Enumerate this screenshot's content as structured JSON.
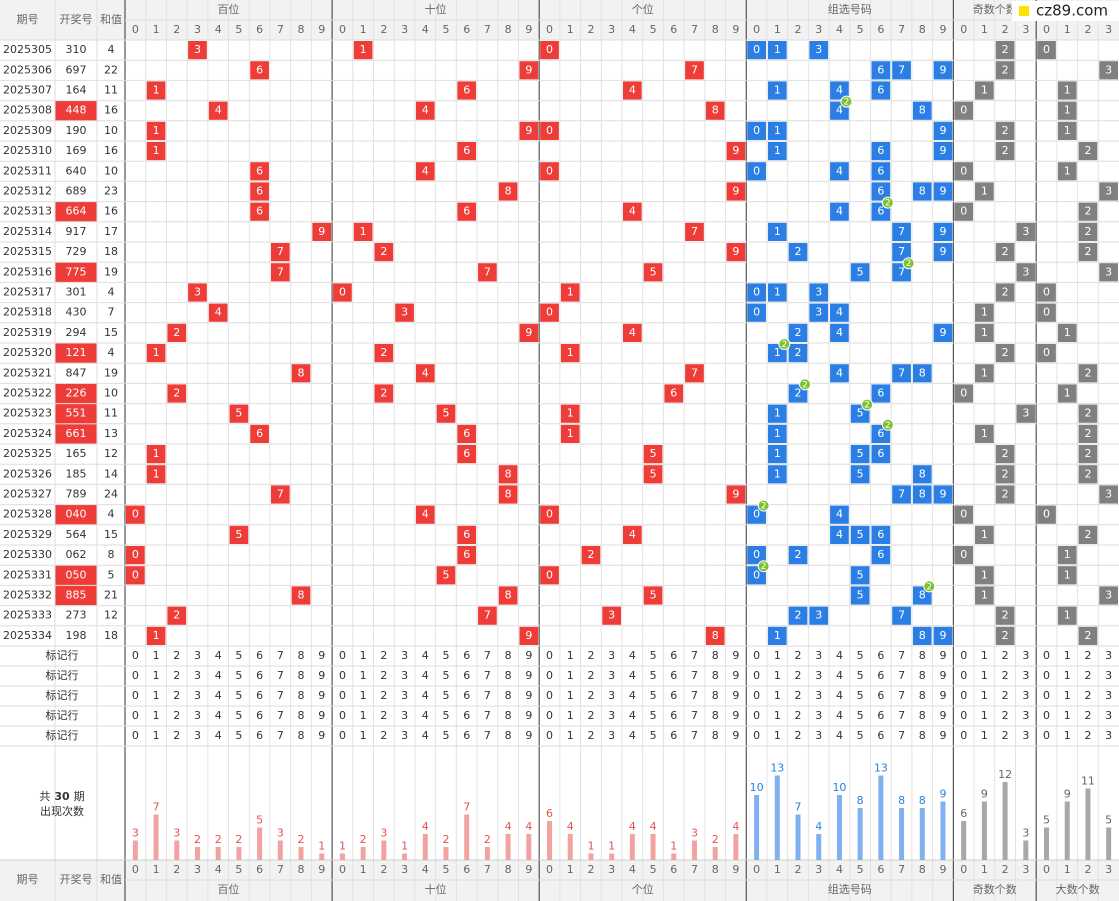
{
  "header": {
    "issue": "期号",
    "number": "开奖号",
    "sum": "和值",
    "groups": [
      "百位",
      "十位",
      "个位",
      "组选号码",
      "奇数个数",
      "大数个数"
    ]
  },
  "watermark": "cz89.com",
  "digit_labels": [
    0,
    1,
    2,
    3,
    4,
    5,
    6,
    7,
    8,
    9
  ],
  "count_labels": [
    0,
    1,
    2,
    3
  ],
  "rows": [
    {
      "issue": "2025305",
      "number": "310",
      "sum": 4,
      "digits": [
        3,
        1,
        0
      ],
      "group": [
        0,
        1,
        3
      ],
      "pair": null,
      "odd": 2,
      "big": 0
    },
    {
      "issue": "2025306",
      "number": "697",
      "sum": 22,
      "digits": [
        6,
        9,
        7
      ],
      "group": [
        6,
        7,
        9
      ],
      "pair": null,
      "odd": 2,
      "big": 3
    },
    {
      "issue": "2025307",
      "number": "164",
      "sum": 11,
      "digits": [
        1,
        6,
        4
      ],
      "group": [
        1,
        4,
        6
      ],
      "pair": null,
      "odd": 1,
      "big": 1
    },
    {
      "issue": "2025308",
      "number": "448",
      "sum": 16,
      "digits": [
        4,
        4,
        8
      ],
      "group": [
        4,
        8
      ],
      "pair": {
        "digit": 4,
        "count": 2
      },
      "odd": 0,
      "big": 1
    },
    {
      "issue": "2025309",
      "number": "190",
      "sum": 10,
      "digits": [
        1,
        9,
        0
      ],
      "group": [
        0,
        1,
        9
      ],
      "pair": null,
      "odd": 2,
      "big": 1
    },
    {
      "issue": "2025310",
      "number": "169",
      "sum": 16,
      "digits": [
        1,
        6,
        9
      ],
      "group": [
        1,
        6,
        9
      ],
      "pair": null,
      "odd": 2,
      "big": 2
    },
    {
      "issue": "2025311",
      "number": "640",
      "sum": 10,
      "digits": [
        6,
        4,
        0
      ],
      "group": [
        0,
        4,
        6
      ],
      "pair": null,
      "odd": 0,
      "big": 1
    },
    {
      "issue": "2025312",
      "number": "689",
      "sum": 23,
      "digits": [
        6,
        8,
        9
      ],
      "group": [
        6,
        8,
        9
      ],
      "pair": null,
      "odd": 1,
      "big": 3
    },
    {
      "issue": "2025313",
      "number": "664",
      "sum": 16,
      "digits": [
        6,
        6,
        4
      ],
      "group": [
        4,
        6
      ],
      "pair": {
        "digit": 6,
        "count": 2
      },
      "odd": 0,
      "big": 2
    },
    {
      "issue": "2025314",
      "number": "917",
      "sum": 17,
      "digits": [
        9,
        1,
        7
      ],
      "group": [
        1,
        7,
        9
      ],
      "pair": null,
      "odd": 3,
      "big": 2
    },
    {
      "issue": "2025315",
      "number": "729",
      "sum": 18,
      "digits": [
        7,
        2,
        9
      ],
      "group": [
        2,
        7,
        9
      ],
      "pair": null,
      "odd": 2,
      "big": 2
    },
    {
      "issue": "2025316",
      "number": "775",
      "sum": 19,
      "digits": [
        7,
        7,
        5
      ],
      "group": [
        5,
        7
      ],
      "pair": {
        "digit": 7,
        "count": 2
      },
      "odd": 3,
      "big": 3
    },
    {
      "issue": "2025317",
      "number": "301",
      "sum": 4,
      "digits": [
        3,
        0,
        1
      ],
      "group": [
        0,
        1,
        3
      ],
      "pair": null,
      "odd": 2,
      "big": 0
    },
    {
      "issue": "2025318",
      "number": "430",
      "sum": 7,
      "digits": [
        4,
        3,
        0
      ],
      "group": [
        0,
        3,
        4
      ],
      "pair": null,
      "odd": 1,
      "big": 0
    },
    {
      "issue": "2025319",
      "number": "294",
      "sum": 15,
      "digits": [
        2,
        9,
        4
      ],
      "group": [
        2,
        4,
        9
      ],
      "pair": null,
      "odd": 1,
      "big": 1
    },
    {
      "issue": "2025320",
      "number": "121",
      "sum": 4,
      "digits": [
        1,
        2,
        1
      ],
      "group": [
        1,
        2
      ],
      "pair": {
        "digit": 1,
        "count": 2
      },
      "odd": 2,
      "big": 0
    },
    {
      "issue": "2025321",
      "number": "847",
      "sum": 19,
      "digits": [
        8,
        4,
        7
      ],
      "group": [
        4,
        7,
        8
      ],
      "pair": null,
      "odd": 1,
      "big": 2
    },
    {
      "issue": "2025322",
      "number": "226",
      "sum": 10,
      "digits": [
        2,
        2,
        6
      ],
      "group": [
        2,
        6
      ],
      "pair": {
        "digit": 2,
        "count": 2
      },
      "odd": 0,
      "big": 1
    },
    {
      "issue": "2025323",
      "number": "551",
      "sum": 11,
      "digits": [
        5,
        5,
        1
      ],
      "group": [
        1,
        5
      ],
      "pair": {
        "digit": 5,
        "count": 2
      },
      "odd": 3,
      "big": 2
    },
    {
      "issue": "2025324",
      "number": "661",
      "sum": 13,
      "digits": [
        6,
        6,
        1
      ],
      "group": [
        1,
        6
      ],
      "pair": {
        "digit": 6,
        "count": 2
      },
      "odd": 1,
      "big": 2
    },
    {
      "issue": "2025325",
      "number": "165",
      "sum": 12,
      "digits": [
        1,
        6,
        5
      ],
      "group": [
        1,
        5,
        6
      ],
      "pair": null,
      "odd": 2,
      "big": 2
    },
    {
      "issue": "2025326",
      "number": "185",
      "sum": 14,
      "digits": [
        1,
        8,
        5
      ],
      "group": [
        1,
        5,
        8
      ],
      "pair": null,
      "odd": 2,
      "big": 2
    },
    {
      "issue": "2025327",
      "number": "789",
      "sum": 24,
      "digits": [
        7,
        8,
        9
      ],
      "group": [
        7,
        8,
        9
      ],
      "pair": null,
      "odd": 2,
      "big": 3
    },
    {
      "issue": "2025328",
      "number": "040",
      "sum": 4,
      "digits": [
        0,
        4,
        0
      ],
      "group": [
        0,
        4
      ],
      "pair": {
        "digit": 0,
        "count": 2
      },
      "odd": 0,
      "big": 0
    },
    {
      "issue": "2025329",
      "number": "564",
      "sum": 15,
      "digits": [
        5,
        6,
        4
      ],
      "group": [
        4,
        5,
        6
      ],
      "pair": null,
      "odd": 1,
      "big": 2
    },
    {
      "issue": "2025330",
      "number": "062",
      "sum": 8,
      "digits": [
        0,
        6,
        2
      ],
      "group": [
        0,
        2,
        6
      ],
      "pair": null,
      "odd": 0,
      "big": 1
    },
    {
      "issue": "2025331",
      "number": "050",
      "sum": 5,
      "digits": [
        0,
        5,
        0
      ],
      "group": [
        0,
        5
      ],
      "pair": {
        "digit": 0,
        "count": 2
      },
      "odd": 1,
      "big": 1
    },
    {
      "issue": "2025332",
      "number": "885",
      "sum": 21,
      "digits": [
        8,
        8,
        5
      ],
      "group": [
        5,
        8
      ],
      "pair": {
        "digit": 8,
        "count": 2
      },
      "odd": 1,
      "big": 3
    },
    {
      "issue": "2025333",
      "number": "273",
      "sum": 12,
      "digits": [
        2,
        7,
        3
      ],
      "group": [
        2,
        3,
        7
      ],
      "pair": null,
      "odd": 2,
      "big": 1
    },
    {
      "issue": "2025334",
      "number": "198",
      "sum": 18,
      "digits": [
        1,
        9,
        8
      ],
      "group": [
        1,
        8,
        9
      ],
      "pair": null,
      "odd": 2,
      "big": 2
    }
  ],
  "marker_rows": [
    "标记行",
    "标记行",
    "标记行",
    "标记行",
    "标记行"
  ],
  "stats_label": {
    "prefix": "共",
    "periods": 30,
    "suffix": "期",
    "line2": "出现次数"
  },
  "stats": {
    "hundreds": [
      3,
      7,
      3,
      2,
      2,
      2,
      5,
      3,
      2,
      1
    ],
    "tens": [
      1,
      2,
      3,
      1,
      4,
      2,
      7,
      2,
      4,
      4
    ],
    "units": [
      6,
      4,
      1,
      1,
      4,
      4,
      1,
      3,
      2,
      4
    ],
    "group": [
      10,
      13,
      7,
      4,
      10,
      8,
      13,
      8,
      8,
      9
    ],
    "odd": [
      6,
      9,
      12,
      3
    ],
    "big": [
      5,
      9,
      11,
      5
    ]
  },
  "colors": {
    "position": "#ee3d38",
    "group": "#2b7ee4",
    "count": "#808080",
    "badge": "#7cc232",
    "bar_position": "#f3a2a2",
    "bar_group": "#7fb0ef",
    "bar_count": "#a8a8a8",
    "label_position": "#e8524d",
    "label_group": "#2b7ee4",
    "label_count": "#666666"
  }
}
